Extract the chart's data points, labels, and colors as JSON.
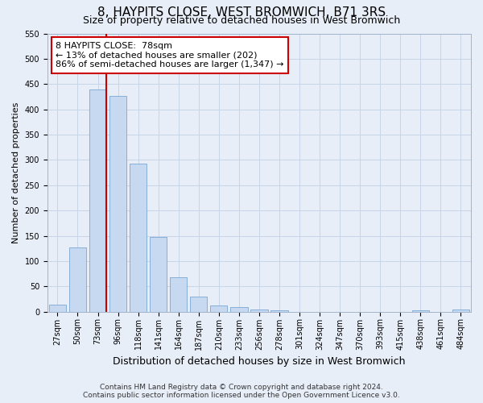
{
  "title": "8, HAYPITS CLOSE, WEST BROMWICH, B71 3RS",
  "subtitle": "Size of property relative to detached houses in West Bromwich",
  "xlabel": "Distribution of detached houses by size in West Bromwich",
  "ylabel": "Number of detached properties",
  "bar_labels": [
    "27sqm",
    "50sqm",
    "73sqm",
    "96sqm",
    "118sqm",
    "141sqm",
    "164sqm",
    "187sqm",
    "210sqm",
    "233sqm",
    "256sqm",
    "278sqm",
    "301sqm",
    "324sqm",
    "347sqm",
    "370sqm",
    "393sqm",
    "415sqm",
    "438sqm",
    "461sqm",
    "484sqm"
  ],
  "bar_values": [
    13,
    127,
    440,
    427,
    293,
    147,
    68,
    29,
    12,
    9,
    5,
    3,
    0,
    0,
    0,
    0,
    0,
    0,
    3,
    0,
    5
  ],
  "bar_color": "#c6d9f0",
  "bar_edge_color": "#7ba7d4",
  "vline_x_index": 2,
  "annotation_text": "8 HAYPITS CLOSE:  78sqm\n← 13% of detached houses are smaller (202)\n86% of semi-detached houses are larger (1,347) →",
  "annotation_box_facecolor": "#ffffff",
  "annotation_box_edgecolor": "#cc0000",
  "vline_color": "#cc0000",
  "ylim": [
    0,
    550
  ],
  "yticks": [
    0,
    50,
    100,
    150,
    200,
    250,
    300,
    350,
    400,
    450,
    500,
    550
  ],
  "title_fontsize": 11,
  "subtitle_fontsize": 9,
  "annotation_fontsize": 8,
  "tick_fontsize": 7,
  "xlabel_fontsize": 9,
  "ylabel_fontsize": 8,
  "footer_fontsize": 6.5,
  "grid_color": "#c8d4e8",
  "background_color": "#e8eef8",
  "footer_line1": "Contains HM Land Registry data © Crown copyright and database right 2024.",
  "footer_line2": "Contains public sector information licensed under the Open Government Licence v3.0."
}
